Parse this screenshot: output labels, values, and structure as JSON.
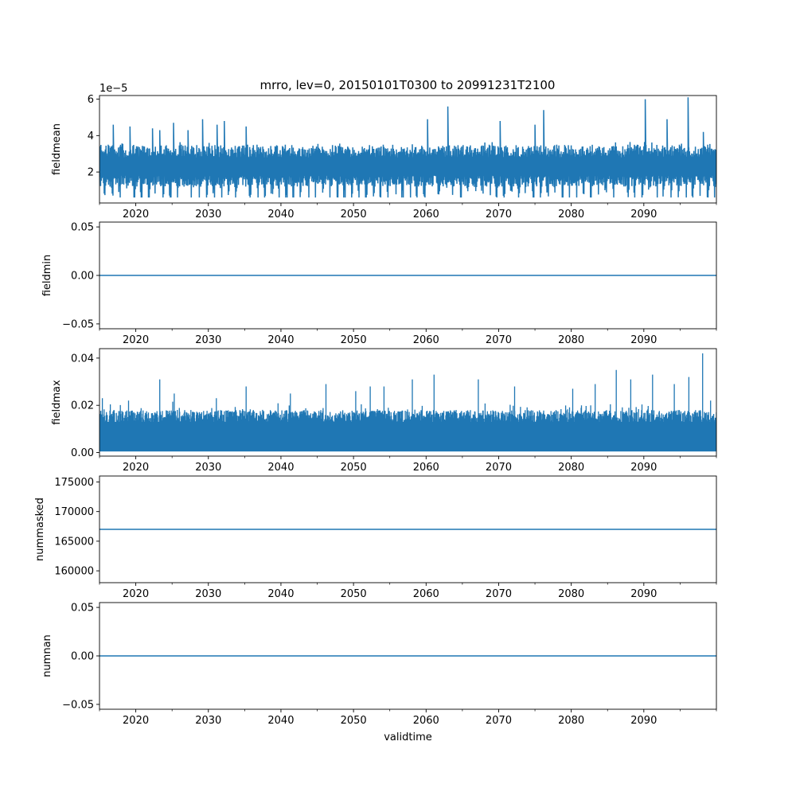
{
  "figure_title": "mrro, lev=0, 20150101T0300 to 20991231T2100",
  "series_color": "#1f77b4",
  "chart_data": [
    {
      "type": "line",
      "ylabel": "fieldmean",
      "xlabel": "",
      "offset_text": "1e−5",
      "xlim": [
        2015.0,
        2100.0
      ],
      "ylim": [
        0.3,
        6.2
      ],
      "yticks": [
        2,
        4,
        6
      ],
      "ytick_labels": [
        "2",
        "4",
        "6"
      ],
      "xticks": [
        2020,
        2030,
        2040,
        2050,
        2060,
        2070,
        2080,
        2090
      ],
      "xtick_labels": [
        "2020",
        "2030",
        "2040",
        "2050",
        "2060",
        "2070",
        "2080",
        "2090"
      ],
      "series": [
        {
          "name": "fieldmean",
          "signal": "seasonal",
          "baseline": 0.9,
          "spikes": [
            [
              2016.9,
              4.6
            ],
            [
              2019.2,
              4.5
            ],
            [
              2022.3,
              4.4
            ],
            [
              2023.3,
              4.3
            ],
            [
              2025.2,
              4.7
            ],
            [
              2027.2,
              4.3
            ],
            [
              2029.2,
              4.9
            ],
            [
              2031.2,
              4.6
            ],
            [
              2032.2,
              4.8
            ],
            [
              2035.2,
              4.5
            ],
            [
              2060.2,
              4.9
            ],
            [
              2063.0,
              5.6
            ],
            [
              2070.2,
              4.8
            ],
            [
              2075.0,
              4.6
            ],
            [
              2076.2,
              5.4
            ],
            [
              2090.2,
              6.0
            ],
            [
              2093.2,
              4.9
            ],
            [
              2096.1,
              6.1
            ],
            [
              2098.2,
              4.2
            ]
          ]
        }
      ]
    },
    {
      "type": "line",
      "ylabel": "fieldmin",
      "xlabel": "",
      "xlim": [
        2015.0,
        2100.0
      ],
      "ylim": [
        -0.055,
        0.055
      ],
      "yticks": [
        -0.05,
        0.0,
        0.05
      ],
      "ytick_labels": [
        "−0.05",
        "0.00",
        "0.05"
      ],
      "xticks": [
        2020,
        2030,
        2040,
        2050,
        2060,
        2070,
        2080,
        2090
      ],
      "xtick_labels": [
        "2020",
        "2030",
        "2040",
        "2050",
        "2060",
        "2070",
        "2080",
        "2090"
      ],
      "series": [
        {
          "name": "fieldmin",
          "signal": "constant",
          "value": 0.0
        }
      ]
    },
    {
      "type": "line",
      "ylabel": "fieldmax",
      "xlabel": "",
      "xlim": [
        2015.0,
        2100.0
      ],
      "ylim": [
        -0.0015,
        0.044
      ],
      "yticks": [
        0.0,
        0.02,
        0.04
      ],
      "ytick_labels": [
        "0.00",
        "0.02",
        "0.04"
      ],
      "xticks": [
        2020,
        2030,
        2040,
        2050,
        2060,
        2070,
        2080,
        2090
      ],
      "xtick_labels": [
        "2020",
        "2030",
        "2040",
        "2050",
        "2060",
        "2070",
        "2080",
        "2090"
      ],
      "series": [
        {
          "name": "fieldmax",
          "signal": "noisy",
          "base_low": 0.0005,
          "band_high": 0.018,
          "spikes": [
            [
              2015.4,
              0.023
            ],
            [
              2019.0,
              0.022
            ],
            [
              2023.3,
              0.031
            ],
            [
              2025.3,
              0.025
            ],
            [
              2031.1,
              0.023
            ],
            [
              2035.2,
              0.028
            ],
            [
              2041.3,
              0.025
            ],
            [
              2046.2,
              0.029
            ],
            [
              2050.3,
              0.026
            ],
            [
              2052.3,
              0.028
            ],
            [
              2054.2,
              0.028
            ],
            [
              2058.1,
              0.031
            ],
            [
              2061.1,
              0.033
            ],
            [
              2067.2,
              0.031
            ],
            [
              2072.2,
              0.028
            ],
            [
              2080.2,
              0.027
            ],
            [
              2083.3,
              0.029
            ],
            [
              2086.2,
              0.035
            ],
            [
              2088.2,
              0.031
            ],
            [
              2091.2,
              0.033
            ],
            [
              2094.2,
              0.029
            ],
            [
              2096.2,
              0.032
            ],
            [
              2098.1,
              0.042
            ],
            [
              2099.2,
              0.022
            ]
          ]
        }
      ]
    },
    {
      "type": "line",
      "ylabel": "nummasked",
      "xlabel": "",
      "xlim": [
        2015.0,
        2100.0
      ],
      "ylim": [
        158000,
        176000
      ],
      "yticks": [
        160000,
        165000,
        170000,
        175000
      ],
      "ytick_labels": [
        "160000",
        "165000",
        "170000",
        "175000"
      ],
      "xticks": [
        2020,
        2030,
        2040,
        2050,
        2060,
        2070,
        2080,
        2090
      ],
      "xtick_labels": [
        "2020",
        "2030",
        "2040",
        "2050",
        "2060",
        "2070",
        "2080",
        "2090"
      ],
      "series": [
        {
          "name": "nummasked",
          "signal": "constant",
          "value": 167000
        }
      ]
    },
    {
      "type": "line",
      "ylabel": "numnan",
      "xlabel": "validtime",
      "xlim": [
        2015.0,
        2100.0
      ],
      "ylim": [
        -0.055,
        0.055
      ],
      "yticks": [
        -0.05,
        0.0,
        0.05
      ],
      "ytick_labels": [
        "−0.05",
        "0.00",
        "0.05"
      ],
      "xticks": [
        2020,
        2030,
        2040,
        2050,
        2060,
        2070,
        2080,
        2090
      ],
      "xtick_labels": [
        "2020",
        "2030",
        "2040",
        "2050",
        "2060",
        "2070",
        "2080",
        "2090"
      ],
      "series": [
        {
          "name": "numnan",
          "signal": "constant",
          "value": 0.0
        }
      ]
    }
  ]
}
